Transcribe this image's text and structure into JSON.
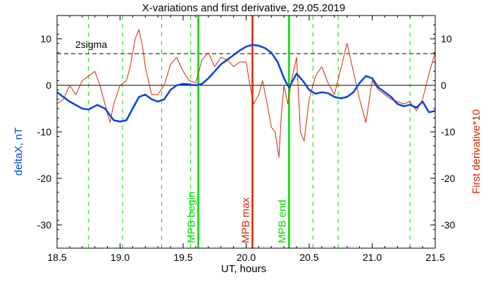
{
  "chart_data": {
    "type": "line",
    "title": "X-variations and first derivative, 29.05.2019",
    "xlabel": "UT, hours",
    "ylabel_left": "deltaX, nT",
    "ylabel_right": "First derivative*10",
    "xlim": [
      18.5,
      21.5
    ],
    "ylim": [
      -35,
      15
    ],
    "x_ticks": [
      "18.5",
      "19.0",
      "19.5",
      "20.0",
      "20.5",
      "21.0",
      "21.5"
    ],
    "y_ticks": [
      "-30",
      "-20",
      "-10",
      "0",
      "10"
    ],
    "grid": false,
    "reference_lines": [
      {
        "label": "2sigma",
        "y": 6.8,
        "color": "#000000",
        "style": "dashed"
      },
      {
        "label": "",
        "y": 0,
        "color": "#000000",
        "style": "solid"
      }
    ],
    "markers": [
      {
        "label": "MPB begin",
        "x": 19.62,
        "color": "#00dd00"
      },
      {
        "label": "MPB max",
        "x": 20.05,
        "color": "#dd2200"
      },
      {
        "label": "MPB end",
        "x": 20.34,
        "color": "#00dd00"
      }
    ],
    "dashed_verticals": [
      18.75,
      19.02,
      19.33,
      19.56,
      20.53,
      20.73,
      21.3
    ],
    "colors": {
      "deltaX": "#0044dd",
      "derivative": "#dd2200",
      "markers_green": "#00dd00",
      "reference": "#000000"
    },
    "series": [
      {
        "name": "deltaX, nT",
        "color": "#0044dd",
        "x": [
          18.5,
          18.6,
          18.7,
          18.75,
          18.82,
          18.88,
          18.95,
          19.0,
          19.05,
          19.1,
          19.15,
          19.2,
          19.25,
          19.3,
          19.35,
          19.4,
          19.45,
          19.5,
          19.55,
          19.6,
          19.65,
          19.7,
          19.75,
          19.8,
          19.85,
          19.9,
          19.95,
          20.0,
          20.05,
          20.1,
          20.15,
          20.2,
          20.25,
          20.3,
          20.34,
          20.4,
          20.45,
          20.5,
          20.55,
          20.6,
          20.65,
          20.7,
          20.75,
          20.8,
          20.85,
          20.9,
          20.95,
          21.0,
          21.05,
          21.1,
          21.15,
          21.2,
          21.25,
          21.3,
          21.35,
          21.4,
          21.45,
          21.5
        ],
        "y": [
          -1.5,
          -3.5,
          -5.0,
          -5.2,
          -4.2,
          -5.0,
          -7.5,
          -7.8,
          -7.5,
          -5.0,
          -2.5,
          -2.0,
          -3.0,
          -3.5,
          -3.0,
          -1.0,
          0.0,
          0.3,
          0.2,
          0.0,
          0.3,
          1.5,
          3.0,
          4.5,
          5.5,
          6.5,
          7.5,
          8.3,
          8.7,
          8.5,
          8.0,
          7.0,
          5.0,
          1.5,
          -0.5,
          2.5,
          1.0,
          -1.0,
          -1.8,
          -1.5,
          -1.7,
          -2.5,
          -2.8,
          -2.5,
          -1.5,
          0.5,
          2.0,
          1.5,
          -0.5,
          -1.5,
          -2.5,
          -4.0,
          -4.5,
          -4.2,
          -4.8,
          -3.5,
          -5.8,
          -5.5
        ]
      },
      {
        "name": "First derivative*10",
        "color": "#dd2200",
        "x": [
          18.5,
          18.55,
          18.6,
          18.65,
          18.7,
          18.75,
          18.8,
          18.84,
          18.88,
          18.92,
          18.95,
          19.0,
          19.05,
          19.08,
          19.12,
          19.15,
          19.18,
          19.2,
          19.25,
          19.3,
          19.35,
          19.4,
          19.45,
          19.5,
          19.55,
          19.6,
          19.65,
          19.7,
          19.75,
          19.8,
          19.85,
          19.9,
          19.95,
          20.0,
          20.03,
          20.06,
          20.1,
          20.13,
          20.16,
          20.2,
          20.23,
          20.26,
          20.28,
          20.3,
          20.33,
          20.36,
          20.4,
          20.43,
          20.46,
          20.5,
          20.55,
          20.6,
          20.65,
          20.7,
          20.75,
          20.8,
          20.85,
          20.9,
          20.95,
          21.0,
          21.05,
          21.1,
          21.15,
          21.2,
          21.25,
          21.3,
          21.35,
          21.4,
          21.45,
          21.5
        ],
        "y": [
          -4.0,
          -3.0,
          0.0,
          -2.0,
          1.0,
          2.0,
          3.0,
          0.0,
          -4.0,
          -8.0,
          -4.0,
          0.0,
          1.0,
          4.0,
          10.0,
          12.0,
          8.0,
          4.0,
          -2.0,
          -2.0,
          0.0,
          4.5,
          6.0,
          3.0,
          1.0,
          0.5,
          5.5,
          7.0,
          4.0,
          6.0,
          5.5,
          4.0,
          5.0,
          5.0,
          0.0,
          -4.0,
          -2.0,
          1.0,
          -3.0,
          -9.0,
          -10.0,
          -15.5,
          -6.0,
          0.0,
          -4.0,
          1.0,
          6.0,
          -10.0,
          -12.0,
          -3.0,
          2.0,
          4.0,
          0.5,
          -2.0,
          3.5,
          9.0,
          3.0,
          -3.0,
          -8.0,
          1.0,
          -1.0,
          -2.0,
          -3.0,
          -3.5,
          -4.0,
          -3.5,
          -5.5,
          -3.0,
          2.5,
          7.0
        ]
      }
    ]
  }
}
